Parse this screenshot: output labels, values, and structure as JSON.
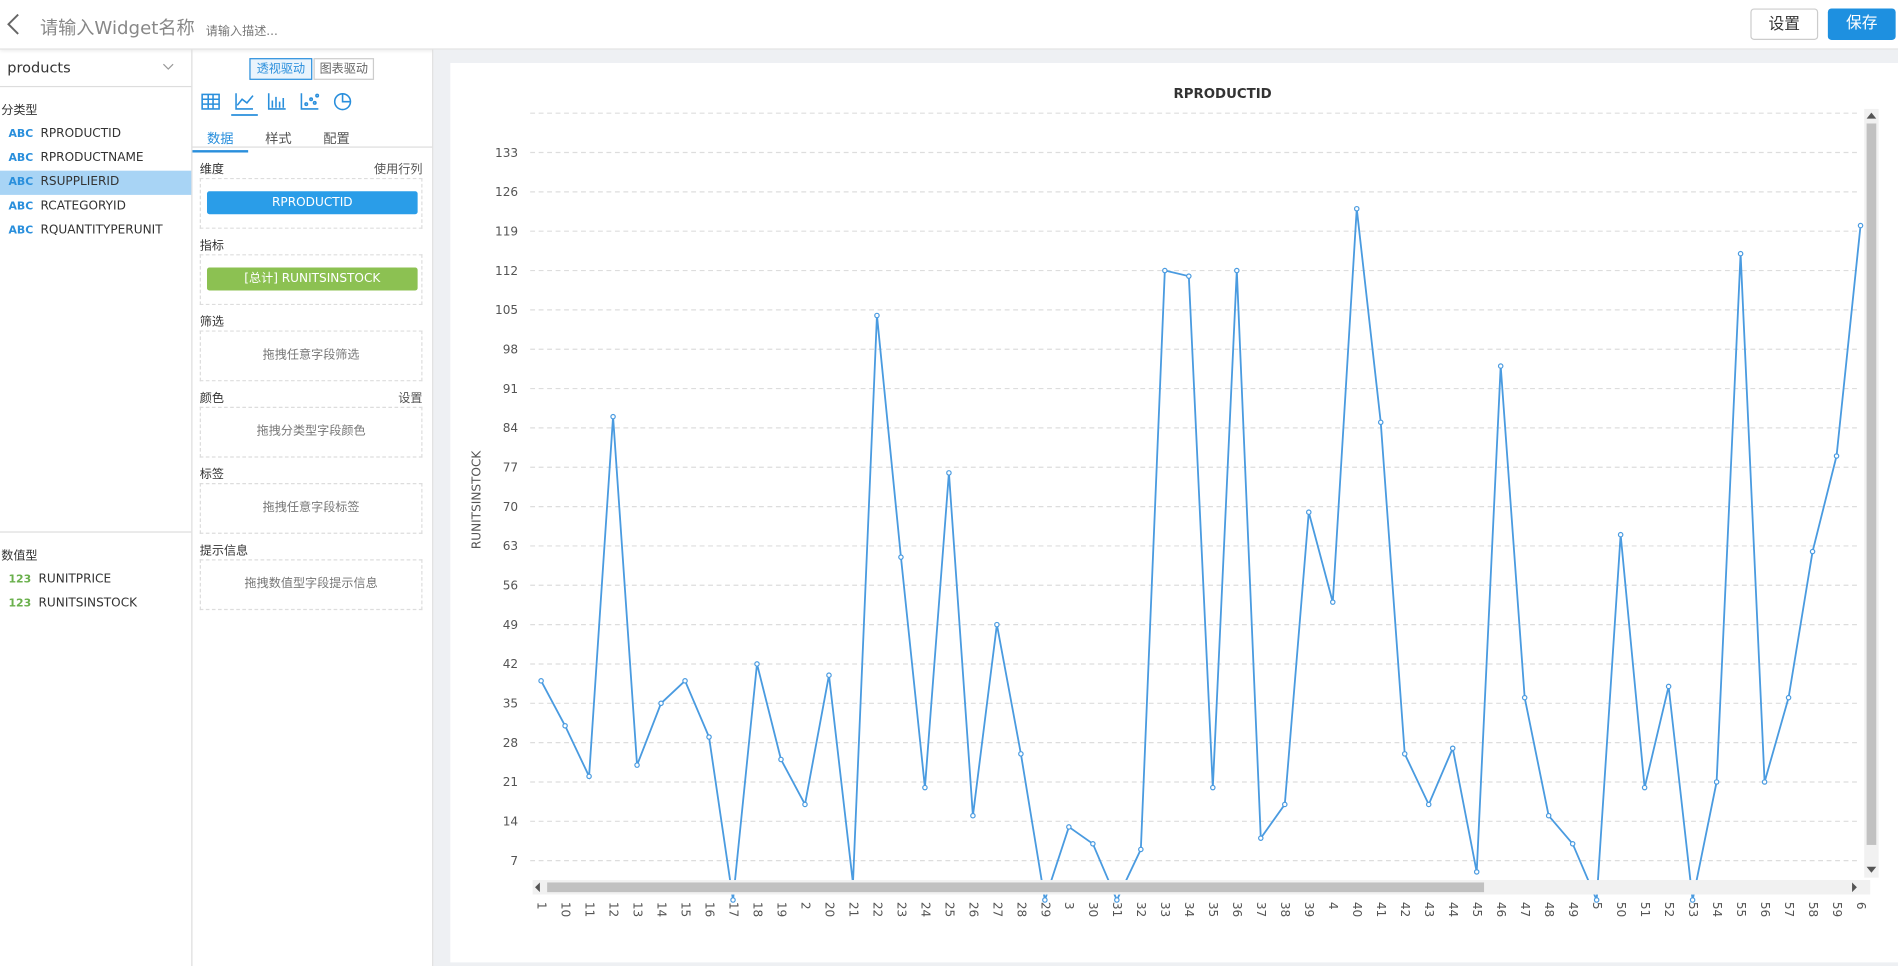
{
  "header": {
    "title": "请输入Widget名称",
    "description": "请输入描述...",
    "buttons": [
      "设置",
      "保存"
    ]
  },
  "fields": {
    "source": "products",
    "category_heading": "分类型",
    "category_badge": "ABC",
    "category_fields": [
      "RPRODUCTID",
      "RPRODUCTNAME",
      "RSUPPLIERID",
      "RCATEGORYID",
      "RQUANTITYPERUNIT"
    ],
    "numeric_heading": "数值型",
    "numeric_badge": "123",
    "numeric_fields": [
      "RUNITPRICE",
      "RUNITSINSTOCK"
    ]
  },
  "config": {
    "mode_tabs": [
      "透视驱动",
      "图表驱动"
    ],
    "tabs": [
      "数据",
      "样式",
      "配置"
    ],
    "sections": [
      {
        "label": "维度",
        "action": "使用行列",
        "item": "RPRODUCTID"
      },
      {
        "label": "指标",
        "item": "[总计] RUNITSINSTOCK"
      },
      {
        "label": "筛选",
        "placeholder": "拖拽任意字段筛选"
      },
      {
        "label": "颜色",
        "action": "设置",
        "placeholder": "拖拽分类型字段颜色"
      },
      {
        "label": "标签",
        "placeholder": "拖拽任意字段标签"
      },
      {
        "label": "提示信息",
        "placeholder": "拖拽数值型字段提示信息"
      }
    ]
  },
  "chart_data": {
    "type": "line",
    "title": "RPRODUCTID",
    "y_label": "RUNITSINSTOCK",
    "color": "#4a9be0",
    "grid": true,
    "categories": [
      "1",
      "10",
      "11",
      "12",
      "13",
      "14",
      "15",
      "16",
      "17",
      "18",
      "19",
      "2",
      "20",
      "21",
      "22",
      "23",
      "24",
      "25",
      "26",
      "27",
      "28",
      "29",
      "3",
      "30",
      "31",
      "32",
      "33",
      "34",
      "35",
      "36",
      "37",
      "38",
      "39",
      "4",
      "40",
      "41",
      "42",
      "43",
      "44",
      "45",
      "46",
      "47",
      "48",
      "49",
      "5",
      "50",
      "51",
      "52",
      "53",
      "54",
      "55",
      "56",
      "57",
      "58",
      "59",
      "6"
    ],
    "values": [
      39,
      31,
      22,
      86,
      24,
      35,
      39,
      29,
      0,
      42,
      25,
      17,
      40,
      3,
      104,
      61,
      20,
      76,
      15,
      49,
      26,
      0,
      13,
      10,
      0,
      9,
      112,
      111,
      20,
      112,
      11,
      17,
      69,
      53,
      123,
      85,
      26,
      17,
      27,
      5,
      95,
      36,
      15,
      10,
      0,
      65,
      20,
      38,
      0,
      21,
      115,
      21,
      36,
      62,
      79,
      120
    ],
    "ylim": [
      0,
      140
    ],
    "yticks": [
      7,
      14,
      21,
      28,
      35,
      42,
      49,
      56,
      63,
      70,
      77,
      84,
      91,
      98,
      105,
      112,
      119,
      126,
      133
    ]
  }
}
